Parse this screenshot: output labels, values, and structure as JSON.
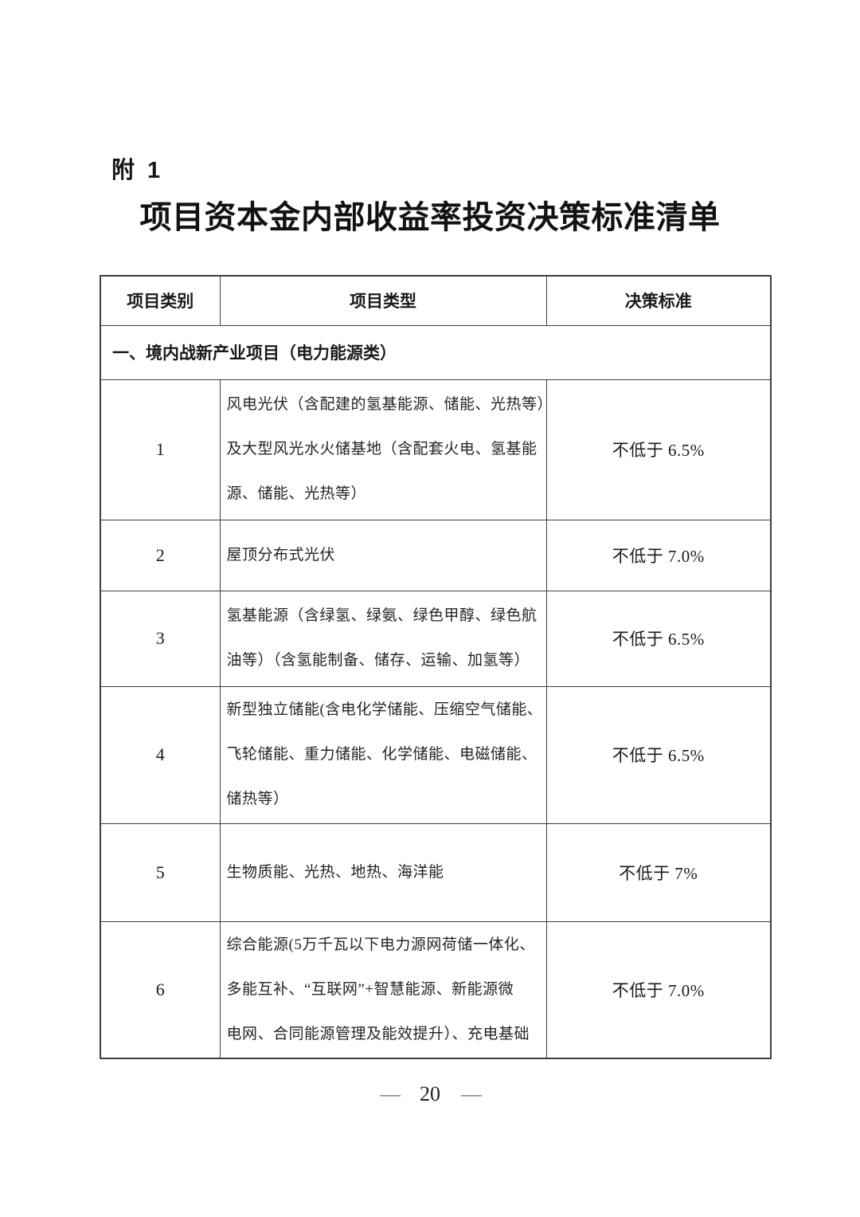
{
  "document": {
    "attachment_label": "附 1",
    "title": "项目资本金内部收益率投资决策标准清单"
  },
  "table": {
    "headers": {
      "category": "项目类别",
      "type": "项目类型",
      "standard": "决策标准"
    },
    "section_header": "一、境内战新产业项目（电力能源类）",
    "rows": [
      {
        "category": "1",
        "type_lines": [
          "风电光伏（含配建的氢基能源、储能、光热等）",
          "及大型风光水火储基地（含配套火电、氢基能",
          "源、储能、光热等）"
        ],
        "standard": "不低于 6.5%"
      },
      {
        "category": "2",
        "type_lines": [
          "屋顶分布式光伏"
        ],
        "standard": "不低于 7.0%"
      },
      {
        "category": "3",
        "type_lines": [
          "氢基能源（含绿氢、绿氨、绿色甲醇、绿色航",
          "油等）（含氢能制备、储存、运输、加氢等）"
        ],
        "standard": "不低于 6.5%"
      },
      {
        "category": "4",
        "type_lines": [
          "新型独立储能(含电化学储能、压缩空气储能、",
          "飞轮储能、重力储能、化学储能、电磁储能、",
          "储热等）"
        ],
        "standard": "不低于 6.5%"
      },
      {
        "category": "5",
        "type_lines": [
          "生物质能、光热、地热、海洋能"
        ],
        "standard": "不低于 7%"
      },
      {
        "category": "6",
        "type_lines": [
          "综合能源(5万千瓦以下电力源网荷储一体化、",
          "多能互补、“互联网”+智慧能源、新能源微",
          "电网、合同能源管理及能效提升）、充电基础"
        ],
        "standard": "不低于 7.0%"
      }
    ]
  },
  "footer": {
    "left_dash": "—",
    "page_number": "20",
    "right_dash": "—"
  }
}
